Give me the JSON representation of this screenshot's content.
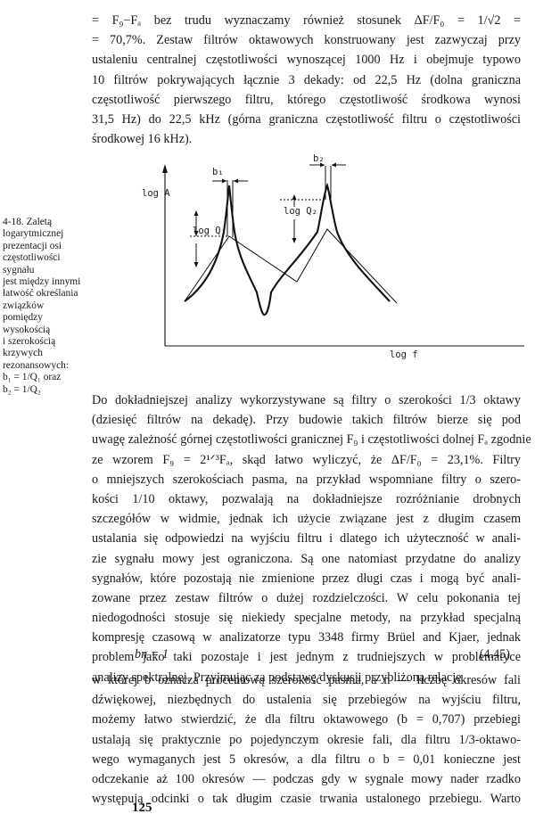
{
  "paragraph1": [
    "= F₉−Fₐ bez trudu wyznaczamy również stosunek ΔF/F₀ = 1/√2 =",
    "= 70,7%. Zestaw filtrów oktawowych konstruowany jest zazwyczaj przy",
    "ustaleniu centralnej częstotliwości wynoszącej 1000 Hz i obejmuje typowo",
    "10 filtrów pokrywających łącznie 3 dekady: od 22,5 Hz (dolna graniczna",
    "częstotliwość pierwszego filtru, którego częstotliwość środkowa wynosi",
    "31,5 Hz) do 22,5 kHz (górna graniczna częstotliwość filtru o częstotliwości",
    "środkowej 16 kHz)."
  ],
  "caption": [
    "4-18. Zaletą",
    "logarytmicznej",
    "prezentacji osi",
    "częstotliwości sygnału",
    "jest między innymi",
    "łatwość określania",
    "związków pomiędzy",
    "wysokością",
    "i szerokością",
    "krzywych",
    "rezonansowych:",
    "b₁ = 1/Q₁ oraz",
    "b₂ = 1/Q₂"
  ],
  "figure": {
    "y_axis_label": "log A",
    "x_axis_label": "log f",
    "label_b1": "b₁",
    "label_b2": "b₂",
    "label_q1": "log Q₁",
    "label_q2": "log Q₂"
  },
  "paragraph2": [
    "Do dokładniejszej analizy wykorzystywane są filtry o szerokości 1/3 oktawy",
    "(dziesięć filtrów na dekadę). Przy budowie takich filtrów bierze się pod",
    "uwagę zależność górnej częstotliwości granicznej F₉ i częstotliwości dolnej Fₐ zgodnie",
    "ze wzorem F₉ = 2¹ᐟ³Fₐ, skąd łatwo wyliczyć, że ΔF/F₀ = 23,1%. Filtry",
    "o mniejszych szerokościach pasma, na przykład wspomniane filtry o szero-",
    "kości 1/10 oktawy, pozwalają na dokładniejsze rozróżnianie drobnych",
    "szczegółów w widmie, jednak ich użycie związane jest z długim czasem",
    "ustalania się odpowiedzi na wyjściu filtru i dlatego ich użyteczność w anali-",
    "zie sygnału mowy jest ograniczona. Są one natomiast przydatne do analizy",
    "sygnałów, które pozostają nie zmienione przez długi czas i mogą być anali-",
    "zowane przez zestaw filtrów o dużej rozdzielczości. W celu pokonania tej",
    "niedogodności stosuje się niekiedy specjalne metody, na przykład specjalną",
    "kompresję czasową w analizatorze typu 3348 firmy Brüel and Kjaer, jednak",
    "problem jako taki pozostaje i jest jednym z trudniejszych w problematyce",
    "analizy spektralnej. Przyjmując za podstawę dyskusji przybliżoną relację"
  ],
  "equation": {
    "formula": "bn = 1",
    "number": "(4.45)"
  },
  "paragraph3": [
    "w której b oznacza procentową szerokość pasma, a n — liczbę okresów fali",
    "dźwiękowej, niezbędnych do ustalenia się przebiegów na wyjściu filtru,",
    "możemy łatwo stwierdzić, że dla filtru oktawowego (b = 0,707) przebiegi",
    "ustalają się praktycznie po pojedynczym okresie fali, dla filtru 1/3-oktawo-",
    "wego wymaganych jest 5 okresów, a dla filtru o b = 0,01 konieczne jest",
    "odczekanie aż 100 okresów — podczas gdy w sygnale mowy nader rzadko",
    "występują odcinki o tak długim czasie trwania ustalonego przebiegu. Warto"
  ],
  "page_number": "125"
}
